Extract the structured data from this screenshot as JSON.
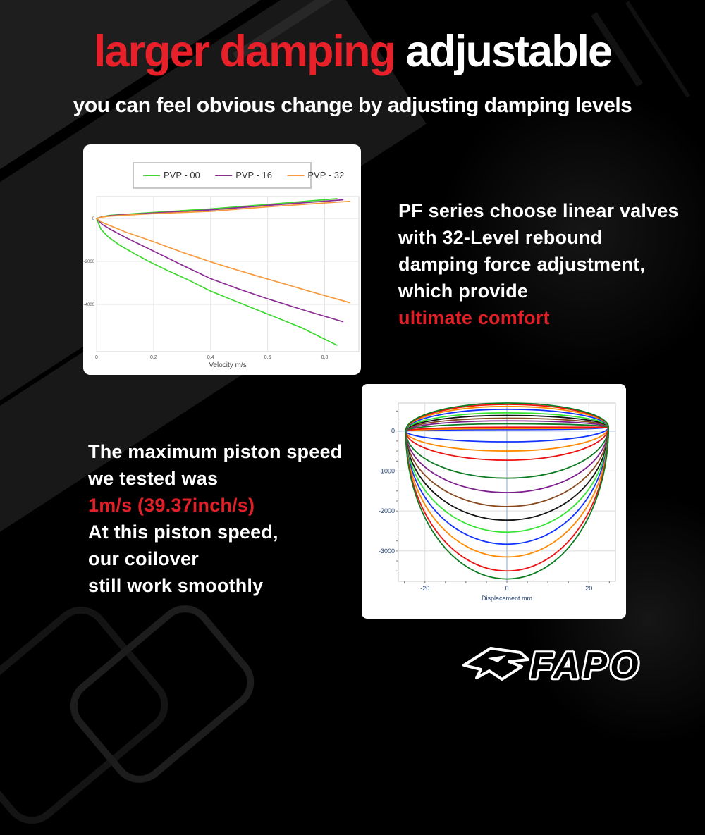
{
  "title": {
    "red_part": "larger damping",
    "white_part": " adjustable"
  },
  "subtitle": "you can feel obvious change by adjusting damping levels",
  "right_text": {
    "lines": [
      "PF series choose linear valves",
      "with 32-Level rebound",
      "damping force adjustment,",
      "which provide"
    ],
    "highlight": "ultimate comfort"
  },
  "left_text": {
    "lines_before": [
      "The maximum piston speed",
      "we tested was"
    ],
    "highlight": "1m/s (39.37inch/s)",
    "lines_after": [
      "At this piston speed,",
      "our coilover",
      "still work smoothly"
    ]
  },
  "logo": {
    "text": "FAPO"
  },
  "colors": {
    "accent_red": "#e8202a",
    "text_red": "#e01f26",
    "pvp00_green": "#3ed830",
    "pvp16_purple": "#8b2d93",
    "pvp32_orange": "#f79a3e",
    "axis_navy": "#23406f",
    "steel_blue": "#8aa8c8"
  },
  "chart_data": [
    {
      "type": "line",
      "title": "",
      "xlabel": "Velocity m/s",
      "ylabel": "",
      "xlim": [
        0,
        0.92
      ],
      "ylim": [
        -6200,
        1020
      ],
      "x_ticks": [
        0,
        0.2,
        0.4,
        0.6,
        0.8
      ],
      "y_ticks": [
        0,
        -2000,
        -4000
      ],
      "grid": true,
      "legend_position": "top-center",
      "series": [
        {
          "name": "PVP - 00",
          "color": "#3ed830",
          "rebound": [
            [
              0,
              0
            ],
            [
              0.015,
              -500
            ],
            [
              0.04,
              -850
            ],
            [
              0.08,
              -1230
            ],
            [
              0.13,
              -1620
            ],
            [
              0.18,
              -1980
            ],
            [
              0.25,
              -2430
            ],
            [
              0.32,
              -2850
            ],
            [
              0.4,
              -3380
            ],
            [
              0.5,
              -3920
            ],
            [
              0.6,
              -4450
            ],
            [
              0.72,
              -5090
            ],
            [
              0.843,
              -5900
            ]
          ],
          "compression": [
            [
              0,
              0
            ],
            [
              0.02,
              90
            ],
            [
              0.05,
              150
            ],
            [
              0.1,
              195
            ],
            [
              0.2,
              280
            ],
            [
              0.4,
              445
            ],
            [
              0.6,
              655
            ],
            [
              0.843,
              920
            ]
          ]
        },
        {
          "name": "PVP - 16",
          "color": "#8b2d93",
          "rebound": [
            [
              0,
              0
            ],
            [
              0.02,
              -280
            ],
            [
              0.05,
              -520
            ],
            [
              0.1,
              -870
            ],
            [
              0.2,
              -1520
            ],
            [
              0.3,
              -2170
            ],
            [
              0.4,
              -2800
            ],
            [
              0.5,
              -3290
            ],
            [
              0.6,
              -3740
            ],
            [
              0.73,
              -4280
            ],
            [
              0.864,
              -4810
            ]
          ],
          "compression": [
            [
              0,
              0
            ],
            [
              0.02,
              80
            ],
            [
              0.05,
              135
            ],
            [
              0.1,
              180
            ],
            [
              0.2,
              255
            ],
            [
              0.4,
              400
            ],
            [
              0.6,
              610
            ],
            [
              0.864,
              870
            ]
          ]
        },
        {
          "name": "PVP - 32",
          "color": "#f79a3e",
          "rebound": [
            [
              0,
              0
            ],
            [
              0.02,
              -180
            ],
            [
              0.05,
              -350
            ],
            [
              0.1,
              -620
            ],
            [
              0.2,
              -1080
            ],
            [
              0.3,
              -1570
            ],
            [
              0.4,
              -2020
            ],
            [
              0.5,
              -2430
            ],
            [
              0.6,
              -2820
            ],
            [
              0.75,
              -3400
            ],
            [
              0.888,
              -3920
            ]
          ],
          "compression": [
            [
              0,
              0
            ],
            [
              0.02,
              70
            ],
            [
              0.05,
              115
            ],
            [
              0.1,
              155
            ],
            [
              0.2,
              225
            ],
            [
              0.4,
              335
            ],
            [
              0.6,
              545
            ],
            [
              0.888,
              800
            ]
          ]
        }
      ]
    },
    {
      "type": "line",
      "title": "",
      "xlabel": "Displacement mm",
      "ylabel": "",
      "xlim": [
        -26.5,
        26.5
      ],
      "ylim": [
        -3760,
        700
      ],
      "x_ticks": [
        -20,
        0,
        20
      ],
      "y_ticks": [
        0,
        -1000,
        -2000,
        -3000
      ],
      "grid": true,
      "left_pinch": [
        -24.7,
        0
      ],
      "right_pinch": [
        24.8,
        95
      ],
      "loops": [
        {
          "color": "#1133ff",
          "top": 35,
          "bottom": -270
        },
        {
          "color": "#ff8a00",
          "top": 60,
          "bottom": -500
        },
        {
          "color": "#ee1111",
          "top": 95,
          "bottom": -730
        },
        {
          "color": "#0b7c21",
          "top": 180,
          "bottom": -1180
        },
        {
          "color": "#7d1f8d",
          "top": 255,
          "bottom": -1540
        },
        {
          "color": "#8a4a1f",
          "top": 320,
          "bottom": -1890
        },
        {
          "color": "#151515",
          "top": 390,
          "bottom": -2230
        },
        {
          "color": "#33e433",
          "top": 455,
          "bottom": -2530
        },
        {
          "color": "#1133ff",
          "top": 545,
          "bottom": -2830
        },
        {
          "color": "#ff8a00",
          "top": 615,
          "bottom": -3150
        },
        {
          "color": "#ee1111",
          "top": 665,
          "bottom": -3500
        },
        {
          "color": "#0b7c21",
          "top": 700,
          "bottom": -3700
        }
      ]
    }
  ]
}
